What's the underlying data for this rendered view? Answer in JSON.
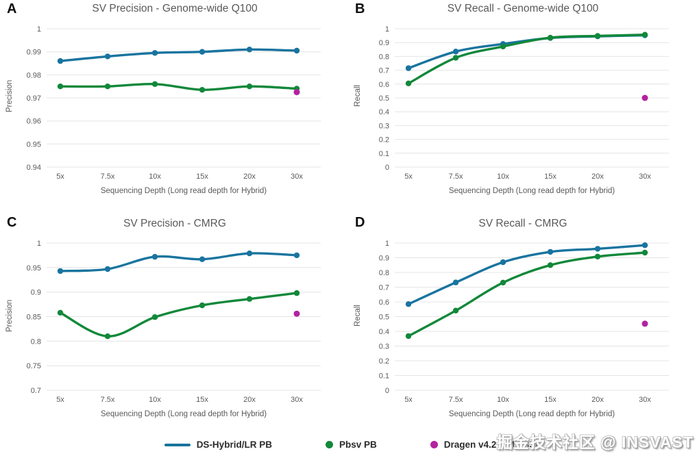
{
  "figure": {
    "watermark": "掘金技术社区 @ INSVAST"
  },
  "colors": {
    "hybrid_blue": "#19749f",
    "pbsv_green": "#12883a",
    "dragen_magenta": "#b322a0",
    "gridline": "#e4e4e4",
    "axis_text": "#595959"
  },
  "legend": {
    "position": "bottom",
    "items": [
      {
        "label": "DS-Hybrid/LR PB",
        "marker": "line",
        "color": "#19749f"
      },
      {
        "label": "Pbsv PB",
        "marker": "dot",
        "color": "#12883a"
      },
      {
        "label": "Dragen v4.2 ILMN 35x",
        "marker": "dot",
        "color": "#b322a0"
      }
    ]
  },
  "chart_data": [
    {
      "type": "line",
      "panel_label": "A",
      "title": "SV Precision - Genome-wide Q100",
      "ylabel": "Precision",
      "xlabel": "Sequencing Depth (Long read depth for Hybrid)",
      "categories": [
        "5x",
        "7.5x",
        "10x",
        "15x",
        "20x",
        "30x"
      ],
      "ylim": [
        0.94,
        1
      ],
      "yticks": [
        "1",
        "0.99",
        "0.98",
        "0.97",
        "0.96",
        "0.95",
        "0.94"
      ],
      "grid": true,
      "series": [
        {
          "name": "DS-Hybrid/LR PB",
          "color": "#19749f",
          "values": [
            0.986,
            0.988,
            0.9895,
            0.99,
            0.991,
            0.9905
          ]
        },
        {
          "name": "Pbsv PB",
          "color": "#12883a",
          "values": [
            0.975,
            0.975,
            0.976,
            0.9735,
            0.975,
            0.974
          ]
        }
      ],
      "scatter": {
        "name": "Dragen v4.2 ILMN 35x",
        "color": "#b322a0",
        "category": "30x",
        "x_index": 5,
        "value": 0.9725
      }
    },
    {
      "type": "line",
      "panel_label": "B",
      "title": "SV Recall - Genome-wide Q100",
      "ylabel": "Recall",
      "xlabel": "Sequencing Depth (Long read depth for Hybrid)",
      "categories": [
        "5x",
        "7.5x",
        "10x",
        "15x",
        "20x",
        "30x"
      ],
      "ylim": [
        0,
        1
      ],
      "yticks": [
        "1",
        "0.9",
        "0.8",
        "0.7",
        "0.6",
        "0.5",
        "0.4",
        "0.3",
        "0.2",
        "0.1",
        "0"
      ],
      "grid": true,
      "series": [
        {
          "name": "DS-Hybrid/LR PB",
          "color": "#19749f",
          "values": [
            0.715,
            0.835,
            0.89,
            0.933,
            0.945,
            0.953
          ]
        },
        {
          "name": "Pbsv PB",
          "color": "#12883a",
          "values": [
            0.605,
            0.79,
            0.872,
            0.935,
            0.948,
            0.957
          ]
        }
      ],
      "scatter": {
        "name": "Dragen v4.2 ILMN 35x",
        "color": "#b322a0",
        "category": "30x",
        "x_index": 5,
        "value": 0.5
      }
    },
    {
      "type": "line",
      "panel_label": "C",
      "title": "SV Precision - CMRG",
      "ylabel": "Precision",
      "xlabel": "Sequencing Depth (Long read depth for Hybrid)",
      "categories": [
        "5x",
        "7.5x",
        "10x",
        "15x",
        "20x",
        "30x"
      ],
      "ylim": [
        0.7,
        1
      ],
      "yticks": [
        "1",
        "0.95",
        "0.9",
        "0.85",
        "0.8",
        "0.75",
        "0.7"
      ],
      "grid": true,
      "series": [
        {
          "name": "DS-Hybrid/LR PB",
          "color": "#19749f",
          "values": [
            0.943,
            0.947,
            0.972,
            0.967,
            0.979,
            0.975
          ]
        },
        {
          "name": "Pbsv PB",
          "color": "#12883a",
          "values": [
            0.858,
            0.81,
            0.849,
            0.873,
            0.886,
            0.898
          ]
        }
      ],
      "scatter": {
        "name": "Dragen v4.2 ILMN 35x",
        "color": "#b322a0",
        "category": "30x",
        "x_index": 5,
        "value": 0.856
      }
    },
    {
      "type": "line",
      "panel_label": "D",
      "title": "SV Recall - CMRG",
      "ylabel": "Recall",
      "xlabel": "Sequencing Depth (Long read depth for Hybrid)",
      "categories": [
        "5x",
        "7.5x",
        "10x",
        "15x",
        "20x",
        "30x"
      ],
      "ylim": [
        0,
        1
      ],
      "yticks": [
        "1",
        "0.9",
        "0.8",
        "0.7",
        "0.6",
        "0.5",
        "0.4",
        "0.3",
        "0.2",
        "0.1",
        "0"
      ],
      "grid": true,
      "series": [
        {
          "name": "DS-Hybrid/LR PB",
          "color": "#19749f",
          "values": [
            0.585,
            0.732,
            0.87,
            0.94,
            0.961,
            0.985
          ]
        },
        {
          "name": "Pbsv PB",
          "color": "#12883a",
          "values": [
            0.368,
            0.541,
            0.731,
            0.85,
            0.908,
            0.935
          ]
        }
      ],
      "scatter": {
        "name": "Dragen v4.2 ILMN 35x",
        "color": "#b322a0",
        "category": "30x",
        "x_index": 5,
        "value": 0.452
      }
    }
  ]
}
